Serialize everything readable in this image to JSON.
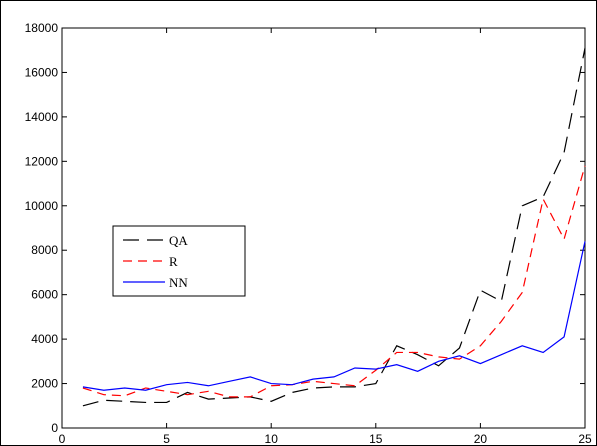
{
  "chart_data": {
    "type": "line",
    "x": [
      1,
      2,
      3,
      4,
      5,
      6,
      7,
      8,
      9,
      10,
      11,
      12,
      13,
      14,
      15,
      16,
      17,
      18,
      19,
      20,
      21,
      22,
      23,
      24,
      25
    ],
    "xlim": [
      0,
      25
    ],
    "xticks": [
      0,
      5,
      10,
      15,
      20,
      25
    ],
    "ylim": [
      0,
      18000
    ],
    "yticks": [
      0,
      2000,
      4000,
      6000,
      8000,
      10000,
      12000,
      14000,
      16000,
      18000
    ],
    "legend": "center-left",
    "series": [
      {
        "name": "QA",
        "color": "#000000",
        "line_style": "long-dash",
        "values": [
          1000,
          1250,
          1200,
          1150,
          1150,
          1600,
          1300,
          1350,
          1400,
          1200,
          1600,
          1800,
          1850,
          1850,
          2000,
          3700,
          3300,
          2800,
          3600,
          6200,
          5700,
          10000,
          10400,
          12400,
          17100
        ]
      },
      {
        "name": "R",
        "color": "#ff0000",
        "line_style": "dash",
        "values": [
          1800,
          1500,
          1450,
          1800,
          1650,
          1500,
          1650,
          1400,
          1400,
          1900,
          1950,
          2100,
          2000,
          1900,
          2600,
          3400,
          3400,
          3200,
          3100,
          3700,
          4800,
          6100,
          10300,
          8500,
          11800
        ]
      },
      {
        "name": "NN",
        "color": "#0000ff",
        "line_style": "solid",
        "values": [
          1850,
          1700,
          1800,
          1700,
          1950,
          2050,
          1900,
          2100,
          2300,
          2000,
          1950,
          2200,
          2300,
          2700,
          2650,
          2850,
          2550,
          3000,
          3250,
          2900,
          3300,
          3700,
          3400,
          4100,
          8400
        ]
      }
    ]
  }
}
